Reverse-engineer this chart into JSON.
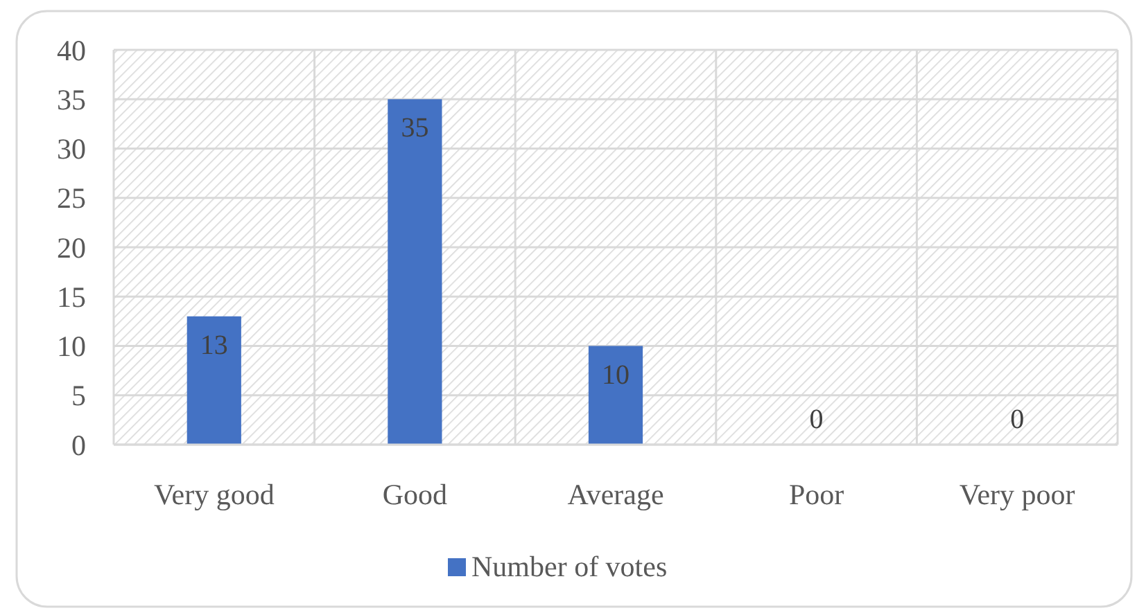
{
  "chart_data": {
    "type": "bar",
    "categories": [
      "Very good",
      "Good",
      "Average",
      "Poor",
      "Very poor"
    ],
    "series": [
      {
        "name": "Number of votes",
        "color": "#4472c4",
        "values": [
          13,
          35,
          10,
          0,
          0
        ]
      }
    ],
    "ylim": [
      0,
      40
    ],
    "yticks": [
      0,
      5,
      10,
      15,
      20,
      25,
      30,
      35,
      40
    ],
    "grid": true,
    "legend": "bottom",
    "data_labels": true
  }
}
